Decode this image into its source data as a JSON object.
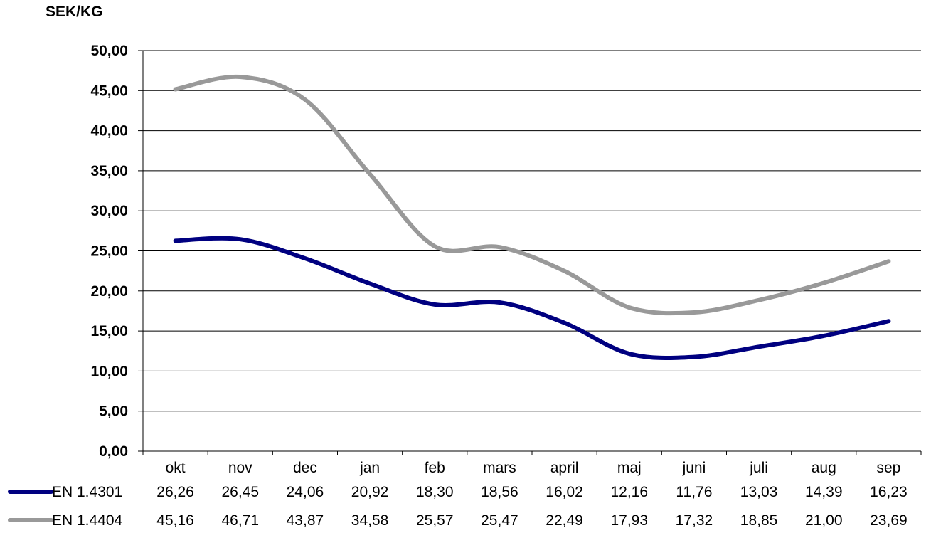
{
  "chart_data": {
    "type": "line",
    "ylabel": "SEK/KG",
    "ylim": [
      0,
      50
    ],
    "ytick_labels": [
      "0,00",
      "5,00",
      "10,00",
      "15,00",
      "20,00",
      "25,00",
      "30,00",
      "35,00",
      "40,00",
      "45,00",
      "50,00"
    ],
    "categories": [
      "okt",
      "nov",
      "dec",
      "jan",
      "feb",
      "mars",
      "april",
      "maj",
      "juni",
      "juli",
      "aug",
      "sep"
    ],
    "grid": "horizontal",
    "legend": "data-table-left",
    "series": [
      {
        "name": "EN 1.4301",
        "color": "#000080",
        "values": [
          26.26,
          26.45,
          24.06,
          20.92,
          18.3,
          18.56,
          16.02,
          12.16,
          11.76,
          13.03,
          14.39,
          16.23
        ],
        "labels": [
          "26,26",
          "26,45",
          "24,06",
          "20,92",
          "18,30",
          "18,56",
          "16,02",
          "12,16",
          "11,76",
          "13,03",
          "14,39",
          "16,23"
        ]
      },
      {
        "name": "EN 1.4404",
        "color": "#999999",
        "values": [
          45.16,
          46.71,
          43.87,
          34.58,
          25.57,
          25.47,
          22.49,
          17.93,
          17.32,
          18.85,
          21.0,
          23.69
        ],
        "labels": [
          "45,16",
          "46,71",
          "43,87",
          "34,58",
          "25,57",
          "25,47",
          "22,49",
          "17,93",
          "17,32",
          "18,85",
          "21,00",
          "23,69"
        ]
      }
    ]
  }
}
